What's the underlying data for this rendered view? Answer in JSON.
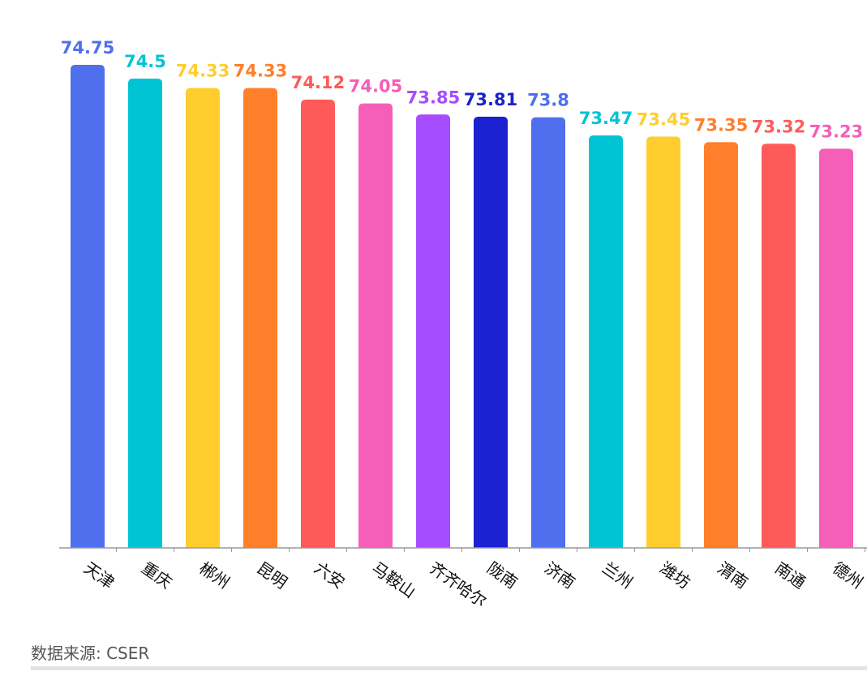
{
  "chart_data": {
    "type": "bar",
    "title": "",
    "xlabel": "",
    "ylabel": "",
    "ylim": [
      66,
      75.5
    ],
    "grid": false,
    "categories": [
      "天津",
      "重庆",
      "郴州",
      "昆明",
      "六安",
      "马鞍山",
      "齐齐哈尔",
      "陇南",
      "济南",
      "兰州",
      "潍坊",
      "渭南",
      "南通",
      "德州"
    ],
    "values": [
      74.75,
      74.5,
      74.33,
      74.33,
      74.12,
      74.05,
      73.85,
      73.81,
      73.8,
      73.47,
      73.45,
      73.35,
      73.32,
      73.23
    ],
    "colors": [
      "#4f6fee",
      "#00c4d4",
      "#ffcd2e",
      "#ff7f2a",
      "#ff5a5a",
      "#f55fb8",
      "#a64dff",
      "#1a21d0",
      "#4f6fee",
      "#00c4d4",
      "#ffcd2e",
      "#ff7f2a",
      "#ff5a5a",
      "#f55fb8"
    ]
  },
  "source": "数据来源: CSER"
}
